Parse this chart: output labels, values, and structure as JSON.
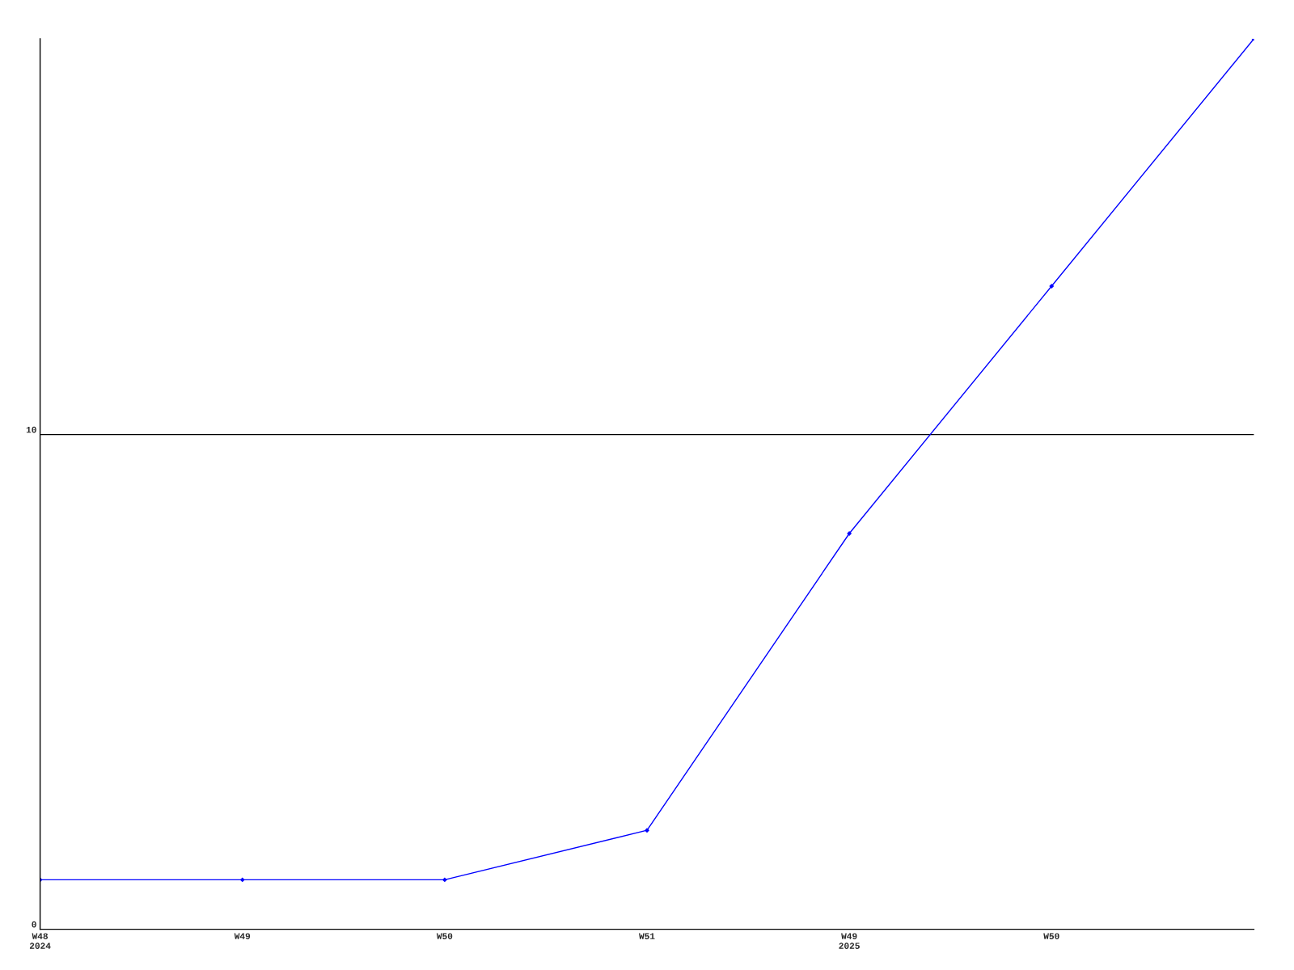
{
  "chart_data": {
    "type": "line",
    "categories": [
      "W48\n2024",
      "W49",
      "W50",
      "W51",
      "W49\n2025",
      "W50",
      null
    ],
    "series": [
      {
        "color": "#0000ff",
        "values": [
          1,
          1,
          1,
          2,
          8,
          13,
          18
        ]
      }
    ],
    "ylim": [
      0,
      18
    ],
    "yticks": [
      0,
      10
    ],
    "grid": "y",
    "marker": "diamond",
    "line_style": "solid"
  }
}
